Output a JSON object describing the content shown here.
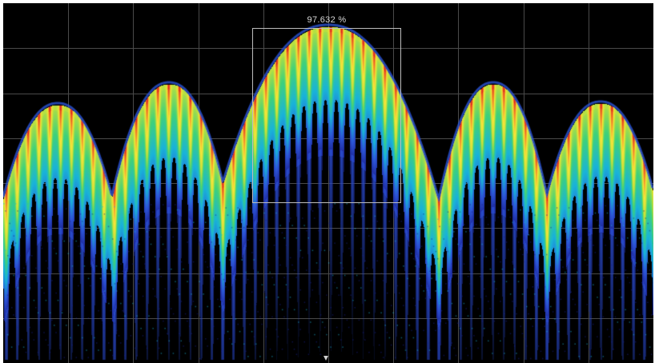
{
  "display": {
    "background": "#000000",
    "grid_color": "#4a4a4a",
    "grid_divisions": {
      "columns": 10,
      "rows": 8
    },
    "colormap": [
      "#1a1f8f",
      "#2c54d6",
      "#19b3d9",
      "#3fd17a",
      "#c8e23a",
      "#f6e53a",
      "#f2912a",
      "#e0261e"
    ]
  },
  "measurement": {
    "readout": "97.632 %"
  },
  "spectrum": {
    "lobe_count": 5,
    "icon_marker": "triangle-down-icon"
  }
}
